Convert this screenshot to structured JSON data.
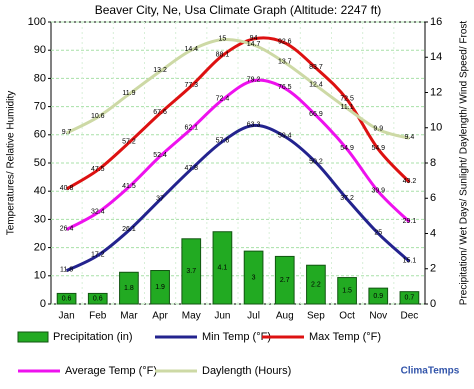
{
  "chart_data": {
    "type": "combo",
    "title": "Beaver City, Ne, Usa Climate Graph (Altitude: 2247 ft)",
    "y_label": "Temperatures/ Relative Humidity",
    "y2_label": "Precipitation/ Wet Days/ Sunlight/ Daylength/ Wind Speed/ Frost",
    "watermark": "ClimaTemps",
    "categories": [
      "Jan",
      "Feb",
      "Mar",
      "Apr",
      "May",
      "Jun",
      "Jul",
      "Aug",
      "Sep",
      "Oct",
      "Nov",
      "Dec"
    ],
    "ylim": [
      0,
      100
    ],
    "yticks": [
      0,
      10,
      20,
      30,
      40,
      50,
      60,
      70,
      80,
      90,
      100
    ],
    "y2lim": [
      0,
      16
    ],
    "y2ticks": [
      0,
      2,
      4,
      6,
      8,
      10,
      12,
      14,
      16
    ],
    "grid": true,
    "series": [
      {
        "name": "Precipitation (in)",
        "type": "bar",
        "axis": "y2",
        "color": "#22aa22",
        "values": [
          0.6,
          0.6,
          1.8,
          1.9,
          3.7,
          4.1,
          3.0,
          2.7,
          2.2,
          1.5,
          0.9,
          0.7
        ]
      },
      {
        "name": "Min Temp (°F)",
        "type": "line",
        "color": "#23238e",
        "values": [
          11.8,
          17.2,
          26.1,
          37.0,
          47.8,
          57.6,
          63.3,
          59.4,
          50.2,
          37.2,
          25.0,
          15.1
        ]
      },
      {
        "name": "Max Temp (°F)",
        "type": "line",
        "color": "#dd1111",
        "values": [
          40.8,
          47.5,
          57.2,
          67.6,
          77.3,
          88.1,
          94.0,
          92.6,
          83.7,
          72.5,
          54.9,
          43.2
        ]
      },
      {
        "name": "Average Temp (°F)",
        "type": "line",
        "color": "#ee11ee",
        "values": [
          26.4,
          32.4,
          41.5,
          52.4,
          62.1,
          72.4,
          79.2,
          76.5,
          66.9,
          54.9,
          39.9,
          29.1
        ]
      },
      {
        "name": "Daylength (Hours)",
        "type": "line",
        "axis": "y2",
        "color": "#cdd9a5",
        "values": [
          9.7,
          10.6,
          11.9,
          13.2,
          14.4,
          15.0,
          14.7,
          13.7,
          12.4,
          11.1,
          9.9,
          9.4
        ]
      }
    ]
  }
}
